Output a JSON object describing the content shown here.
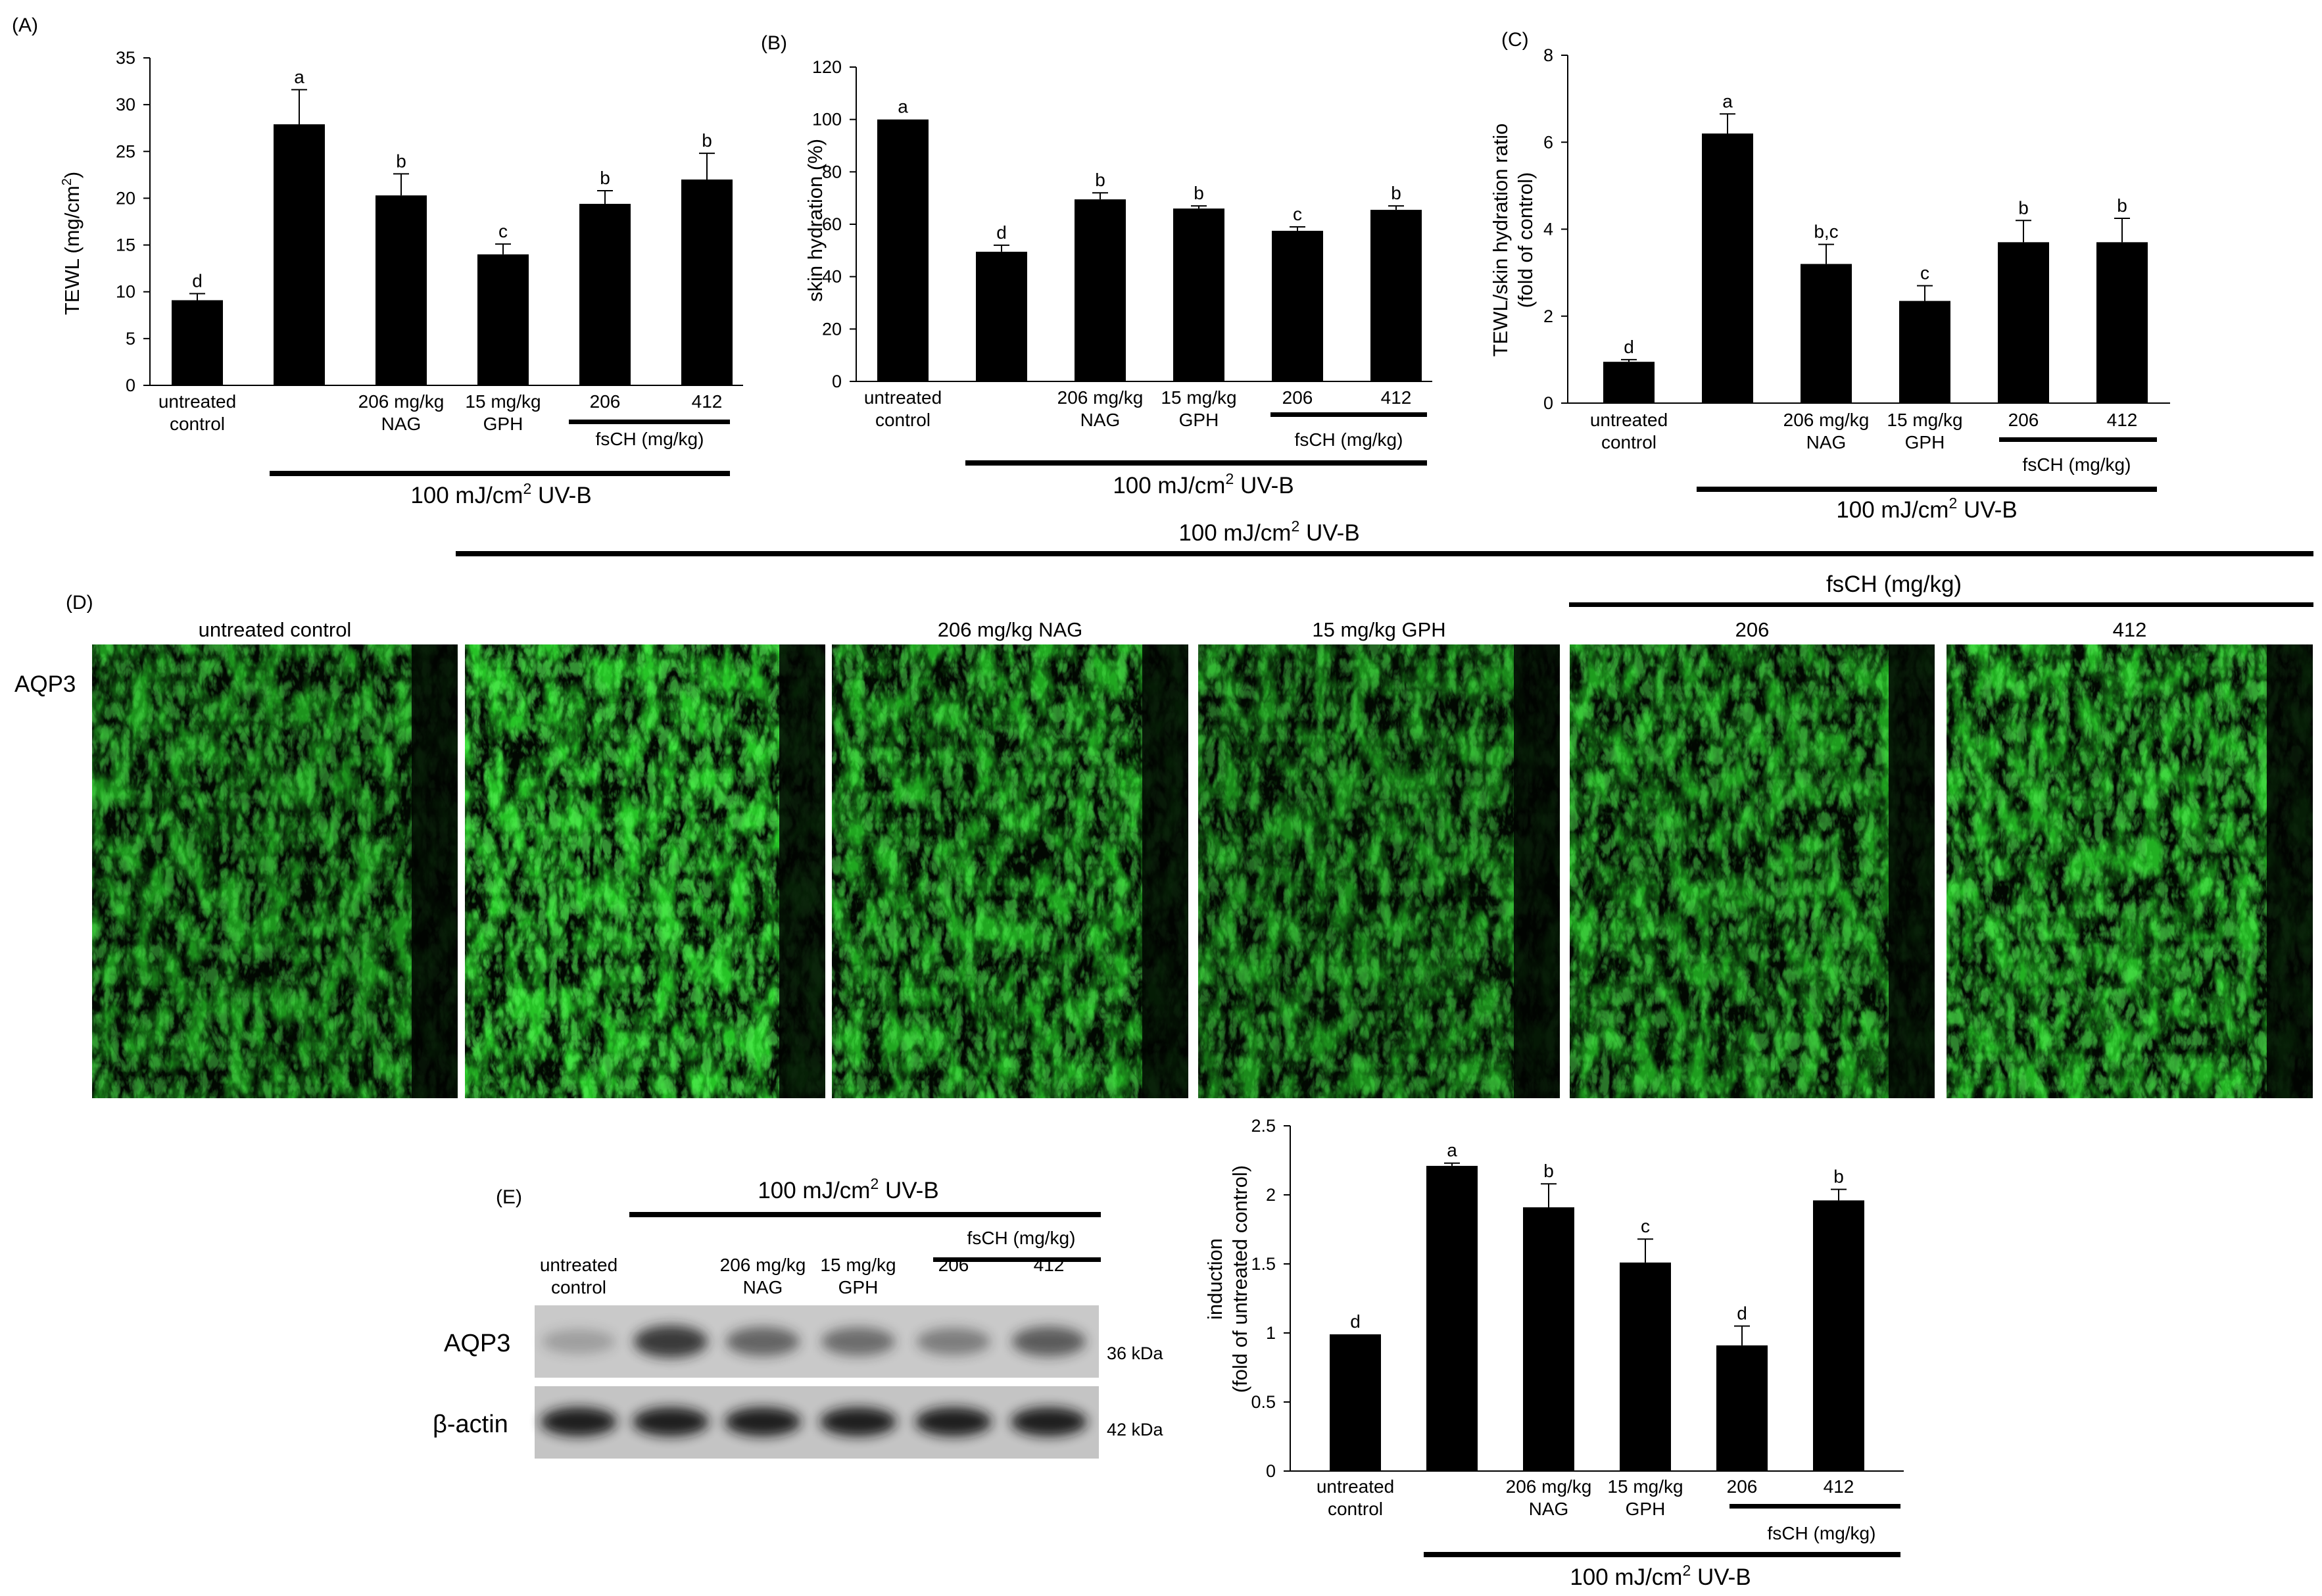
{
  "panels": {
    "A": {
      "letter": "(A)"
    },
    "B": {
      "letter": "(B)"
    },
    "C": {
      "letter": "(C)"
    },
    "D": {
      "letter": "(D)"
    },
    "E": {
      "letter": "(E)"
    }
  },
  "uvb_label": "100 mJ/cm2 UV-B",
  "uvb_unit_main": "100 mJ/cm",
  "uvb_unit_sup": "2",
  "uvb_unit_tail": " UV-B",
  "fsch_label": "fsCH (mg/kg)",
  "chart_data": [
    {
      "id": "A",
      "type": "bar",
      "ylabel_main": "TEWL (mg/cm",
      "ylabel_sup": "2",
      "ylabel_tail": ")",
      "ylim": [
        0,
        35
      ],
      "yticks": [
        0,
        5,
        10,
        15,
        20,
        25,
        30,
        35
      ],
      "categories": [
        "untreated control",
        "",
        "206 mg/kg NAG",
        "15 mg/kg GPH",
        "206",
        "412"
      ],
      "values": [
        9.1,
        27.9,
        20.3,
        14.0,
        19.4,
        22.0
      ],
      "errors": [
        0.7,
        3.7,
        2.3,
        1.1,
        1.4,
        2.8
      ],
      "significance": [
        "d",
        "a",
        "b",
        "c",
        "b",
        "b"
      ]
    },
    {
      "id": "B",
      "type": "bar",
      "ylabel": "skin hydration (%)",
      "ylim": [
        0,
        120
      ],
      "yticks": [
        0,
        20,
        40,
        60,
        80,
        100,
        120
      ],
      "categories": [
        "untreated control",
        "",
        "206 mg/kg NAG",
        "15 mg/kg GPH",
        "206",
        "412"
      ],
      "values": [
        100,
        49.5,
        69.5,
        66,
        57.5,
        65.5
      ],
      "errors": [
        0,
        2.5,
        2.5,
        1.0,
        1.5,
        1.5
      ],
      "significance": [
        "a",
        "d",
        "b",
        "b",
        "c",
        "b"
      ]
    },
    {
      "id": "C",
      "type": "bar",
      "ylabel": "TEWL/skin hydration ratio",
      "ylabel2": "(fold of control)",
      "ylim": [
        0,
        8
      ],
      "yticks": [
        0,
        2,
        4,
        6,
        8
      ],
      "categories": [
        "untreated control",
        "",
        "206 mg/kg NAG",
        "15 mg/kg GPH",
        "206",
        "412"
      ],
      "values": [
        0.95,
        6.2,
        3.2,
        2.35,
        3.7,
        3.7
      ],
      "errors": [
        0.05,
        0.45,
        0.45,
        0.35,
        0.5,
        0.55
      ],
      "significance": [
        "d",
        "a",
        "b,c",
        "c",
        "b",
        "b"
      ]
    },
    {
      "id": "E",
      "type": "bar",
      "ylabel": "induction",
      "ylabel2": "(fold of untreated  control)",
      "ylim": [
        0,
        2.5
      ],
      "yticks": [
        "0",
        "0.5",
        "1",
        "1.5",
        "2",
        "2.5"
      ],
      "categories": [
        "untreated control",
        "",
        "206 mg/kg NAG",
        "15 mg/kg GPH",
        "206",
        "412"
      ],
      "values": [
        0.99,
        2.21,
        1.91,
        1.51,
        0.91,
        1.96
      ],
      "errors": [
        0.0,
        0.02,
        0.17,
        0.17,
        0.14,
        0.08
      ],
      "significance": [
        "d",
        "a",
        "b",
        "c",
        "d",
        "b"
      ]
    }
  ],
  "microscopy": {
    "row_label": "AQP3",
    "images": [
      {
        "label": "untreated  control",
        "intensity": 0.75
      },
      {
        "label": "",
        "intensity": 1.0
      },
      {
        "label": "206 mg/kg NAG",
        "intensity": 0.85
      },
      {
        "label": "15 mg/kg GPH",
        "intensity": 0.7
      },
      {
        "label": "206",
        "intensity": 0.8
      },
      {
        "label": "412",
        "intensity": 0.9
      }
    ]
  },
  "western": {
    "lanes": [
      {
        "label1": "untreated",
        "label2": "control"
      },
      {
        "label1": "",
        "label2": ""
      },
      {
        "label1": "206 mg/kg",
        "label2": "NAG"
      },
      {
        "label1": "15 mg/kg",
        "label2": "GPH"
      },
      {
        "label1": "206",
        "label2": ""
      },
      {
        "label1": "412",
        "label2": ""
      }
    ],
    "aqp3_label": "AQP3",
    "aqp3_size": "36 kDa",
    "actin_label": "β-actin",
    "actin_size": "42 kDa",
    "aqp3_intensity": [
      0.25,
      0.85,
      0.6,
      0.55,
      0.45,
      0.65
    ]
  }
}
